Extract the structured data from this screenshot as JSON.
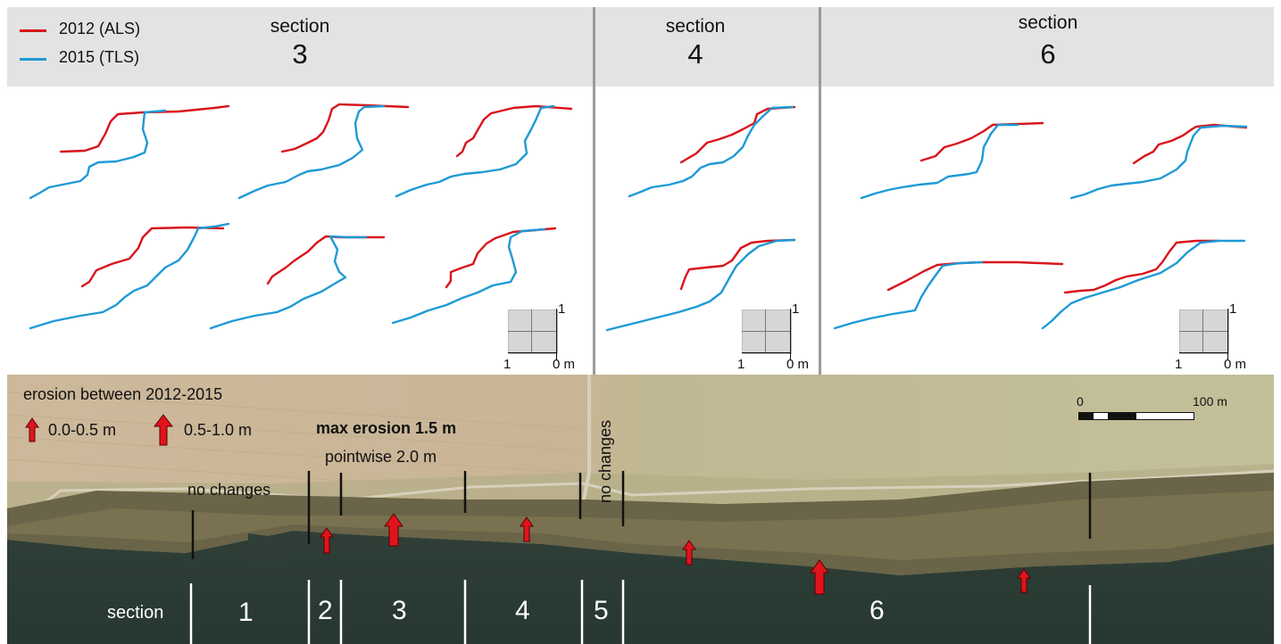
{
  "legend": {
    "items": [
      {
        "label": "2012 (ALS)",
        "color": "#d9141b"
      },
      {
        "label": "2015 (TLS)",
        "color": "#1e9ad6"
      }
    ]
  },
  "sections_top": [
    {
      "title": "section",
      "number": "3"
    },
    {
      "title": "section",
      "number": "4"
    },
    {
      "title": "section",
      "number": "6"
    }
  ],
  "profile_scale": {
    "vertical": "1",
    "left": "1",
    "right": "0 m"
  },
  "map": {
    "erosion_title": "erosion between 2012-2015",
    "small_arrow_label": "0.0-0.5 m",
    "large_arrow_label": "0.5-1.0 m",
    "max_erosion": "max erosion 1.5 m",
    "pointwise": "pointwise 2.0 m",
    "no_changes_1": "no changes",
    "no_changes_2": "no changes",
    "scalebar_start": "0",
    "scalebar_end": "100 m",
    "section_word": "section",
    "section_numbers": [
      "1",
      "2",
      "3",
      "4",
      "5",
      "6"
    ]
  },
  "colors": {
    "als": "#d9141b",
    "tls": "#1e9ad6",
    "arrow": "#e0141b",
    "water": "#2b3b34",
    "field": "#c8b79a"
  }
}
